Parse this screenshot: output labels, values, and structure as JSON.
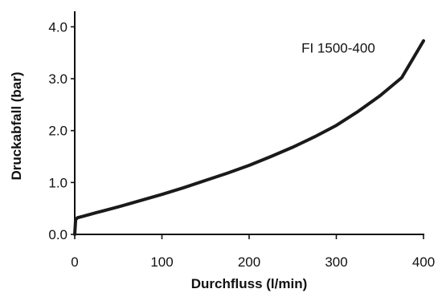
{
  "chart_data": {
    "type": "line",
    "title": "",
    "xlabel": "Durchfluss (l/min)",
    "ylabel": "Druckabfall (bar)",
    "xlim": [
      0,
      400
    ],
    "ylim": [
      0,
      4.3
    ],
    "xticks": [
      0,
      100,
      200,
      300,
      400
    ],
    "xtick_labels": [
      "0",
      "100",
      "200",
      "300",
      "400"
    ],
    "yticks": [
      0,
      1,
      2,
      3,
      4
    ],
    "ytick_labels": [
      "0.0",
      "1.0",
      "2.0",
      "3.0",
      "4.0"
    ],
    "grid": false,
    "legend": "none",
    "series": [
      {
        "name": "FI 1500-400",
        "color": "#1a1a1a",
        "x": [
          0,
          1,
          3,
          10,
          25,
          50,
          75,
          100,
          125,
          150,
          175,
          200,
          225,
          250,
          275,
          300,
          325,
          350,
          375,
          400
        ],
        "y": [
          0.0,
          0.28,
          0.32,
          0.35,
          0.42,
          0.53,
          0.65,
          0.77,
          0.9,
          1.04,
          1.18,
          1.33,
          1.5,
          1.68,
          1.88,
          2.1,
          2.37,
          2.67,
          3.02,
          3.73
        ]
      }
    ],
    "annotations": [
      {
        "text": "FI 1500-400",
        "x": 260,
        "y": 3.5
      }
    ]
  }
}
